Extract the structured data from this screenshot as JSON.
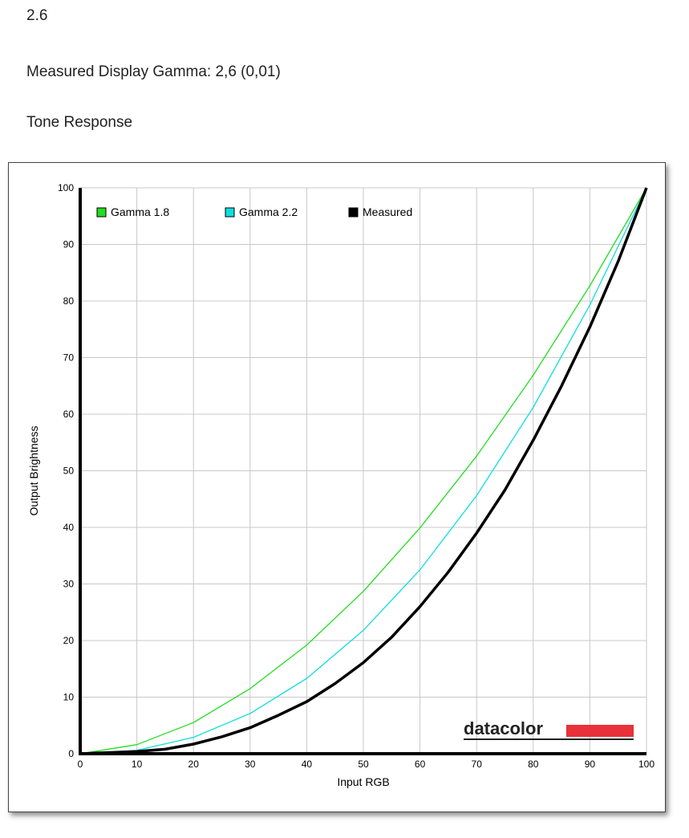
{
  "header": {
    "value": "2.6",
    "measured_gamma": "Measured Display Gamma: 2,6 (0,01)",
    "section_title": "Tone Response"
  },
  "chart_data": {
    "type": "line",
    "xlabel": "Input RGB",
    "ylabel": "Output Brightness",
    "xlim": [
      0,
      100
    ],
    "ylim": [
      0,
      100
    ],
    "x_ticks": [
      0,
      10,
      20,
      30,
      40,
      50,
      60,
      70,
      80,
      90,
      100
    ],
    "y_ticks": [
      0,
      10,
      20,
      30,
      40,
      50,
      60,
      70,
      80,
      90,
      100
    ],
    "grid": true,
    "legend_position": "top-left",
    "series": [
      {
        "name": "Gamma 1.8",
        "color": "#22dd22",
        "x": [
          0,
          10,
          20,
          30,
          40,
          50,
          60,
          70,
          80,
          90,
          100
        ],
        "y": [
          0,
          1.6,
          5.5,
          11.5,
          19.2,
          28.7,
          39.9,
          52.6,
          66.9,
          82.7,
          100
        ]
      },
      {
        "name": "Gamma 2.2",
        "color": "#11dddd",
        "x": [
          0,
          10,
          20,
          30,
          40,
          50,
          60,
          70,
          80,
          90,
          100
        ],
        "y": [
          0,
          0.6,
          2.9,
          7.1,
          13.3,
          21.8,
          32.5,
          45.6,
          61.2,
          79.3,
          100
        ]
      },
      {
        "name": "Measured",
        "color": "#000000",
        "x": [
          0,
          5,
          10,
          15,
          20,
          25,
          30,
          35,
          40,
          45,
          50,
          55,
          60,
          65,
          70,
          75,
          80,
          85,
          90,
          95,
          100
        ],
        "y": [
          0,
          0.2,
          0.4,
          0.8,
          1.7,
          3.0,
          4.6,
          6.8,
          9.2,
          12.4,
          16.1,
          20.6,
          26.0,
          32.1,
          39.0,
          46.6,
          55.4,
          65.0,
          75.4,
          87.0,
          100
        ]
      }
    ]
  },
  "logo": {
    "text": "datacolor",
    "bar_color": "#e8313a"
  }
}
